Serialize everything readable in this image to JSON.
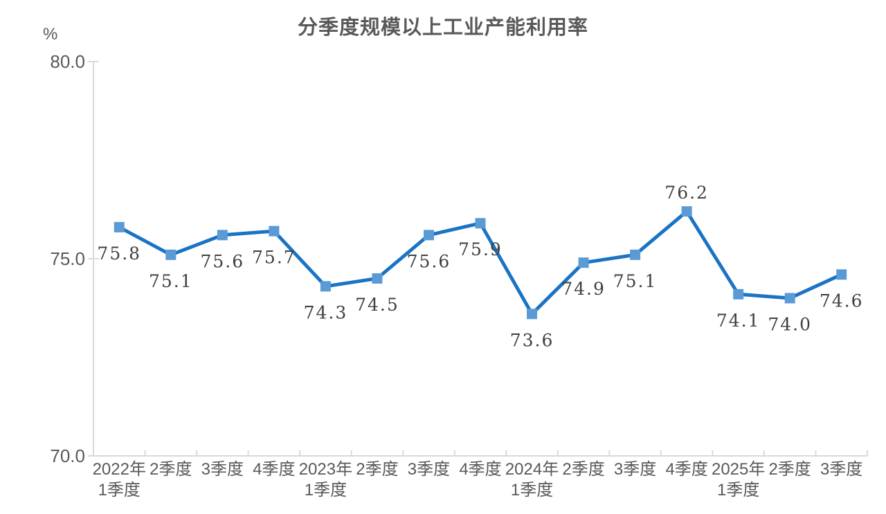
{
  "chart_data": {
    "type": "line",
    "title": "分季度规模以上工业产能利用率",
    "unit_label": "%",
    "categories": [
      [
        "2022年",
        "1季度"
      ],
      [
        "2季度"
      ],
      [
        "3季度"
      ],
      [
        "4季度"
      ],
      [
        "2023年",
        "1季度"
      ],
      [
        "2季度"
      ],
      [
        "3季度"
      ],
      [
        "4季度"
      ],
      [
        "2024年",
        "1季度"
      ],
      [
        "2季度"
      ],
      [
        "3季度"
      ],
      [
        "4季度"
      ],
      [
        "2025年",
        "1季度"
      ],
      [
        "2季度"
      ],
      [
        "3季度"
      ]
    ],
    "values": [
      75.8,
      75.1,
      75.6,
      75.7,
      74.3,
      74.5,
      75.6,
      75.9,
      73.6,
      74.9,
      75.1,
      76.2,
      74.1,
      74.0,
      74.6
    ],
    "data_labels": [
      "75.8",
      "75.1",
      "75.6",
      "75.7",
      "74.3",
      "74.5",
      "75.6",
      "75.9",
      "73.6",
      "74.9",
      "75.1",
      "76.2",
      "74.1",
      "74.0",
      "74.6"
    ],
    "label_positions": [
      "below",
      "below",
      "below",
      "below",
      "below",
      "below",
      "below",
      "below",
      "below",
      "below",
      "below",
      "above",
      "below",
      "below",
      "below"
    ],
    "xlabel": "",
    "ylabel": "%",
    "ylim": [
      70.0,
      80.0
    ],
    "yticks": [
      "80.0",
      "75.0",
      "70.0"
    ],
    "ytick_values": [
      80.0,
      75.0,
      70.0
    ],
    "grid": false,
    "legend": "none",
    "marker": "square",
    "colors": {
      "line": "#1a73c4",
      "marker": "#5b9bd5",
      "axis": "#d9d9d9",
      "tick_label": "#595959",
      "data_label": "#3f3f3f",
      "title": "#595959"
    }
  }
}
